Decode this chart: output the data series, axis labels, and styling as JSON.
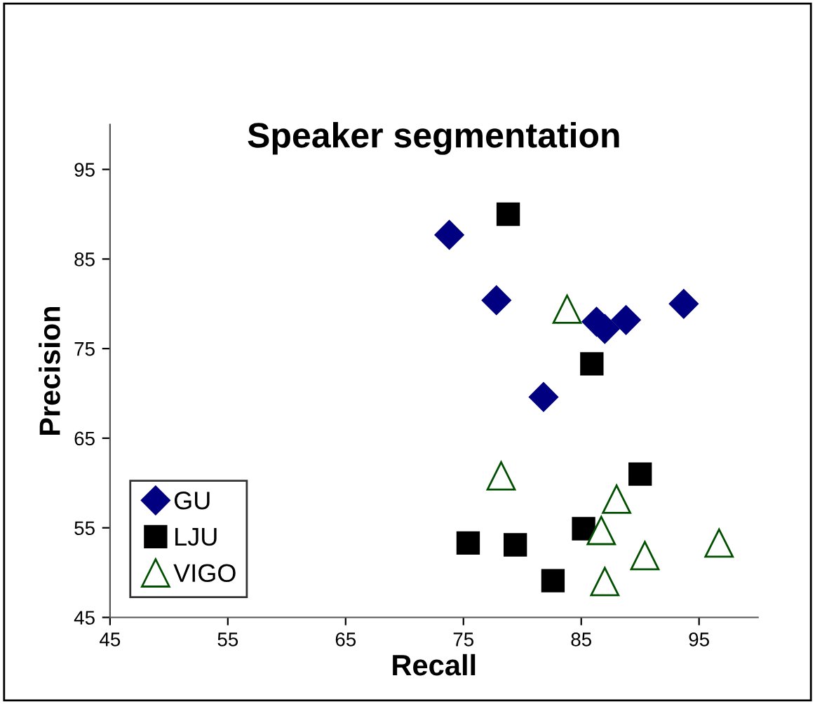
{
  "chart_data": {
    "type": "scatter",
    "title": "Speaker segmentation",
    "xlabel": "Recall",
    "ylabel": "Precision",
    "xlim": [
      45,
      100
    ],
    "ylim": [
      45,
      100
    ],
    "xticks": [
      45,
      55,
      65,
      75,
      85,
      95
    ],
    "yticks": [
      45,
      55,
      65,
      75,
      85,
      95
    ],
    "grid": false,
    "legend": "bottom left",
    "series": [
      {
        "name": "GU",
        "color": "#000080",
        "marker": "diamond",
        "x": [
          73.8,
          77.8,
          86.3,
          87.0,
          88.8,
          93.7,
          81.8
        ],
        "values": [
          87.7,
          80.4,
          78.0,
          77.2,
          78.2,
          80.0,
          69.6
        ]
      },
      {
        "name": "LJU",
        "color": "#000000",
        "marker": "square",
        "x": [
          78.8,
          85.9,
          90.0,
          85.2,
          75.4,
          79.4,
          82.6
        ],
        "values": [
          90.0,
          73.3,
          61.0,
          54.9,
          53.3,
          53.1,
          49.1
        ]
      },
      {
        "name": "VIGO",
        "color": "#005000",
        "marker": "triangle",
        "x": [
          83.8,
          78.2,
          88.0,
          86.7,
          90.4,
          96.7,
          87.0
        ],
        "values": [
          79.4,
          60.8,
          58.2,
          54.7,
          51.9,
          53.3,
          49.0
        ]
      }
    ]
  }
}
